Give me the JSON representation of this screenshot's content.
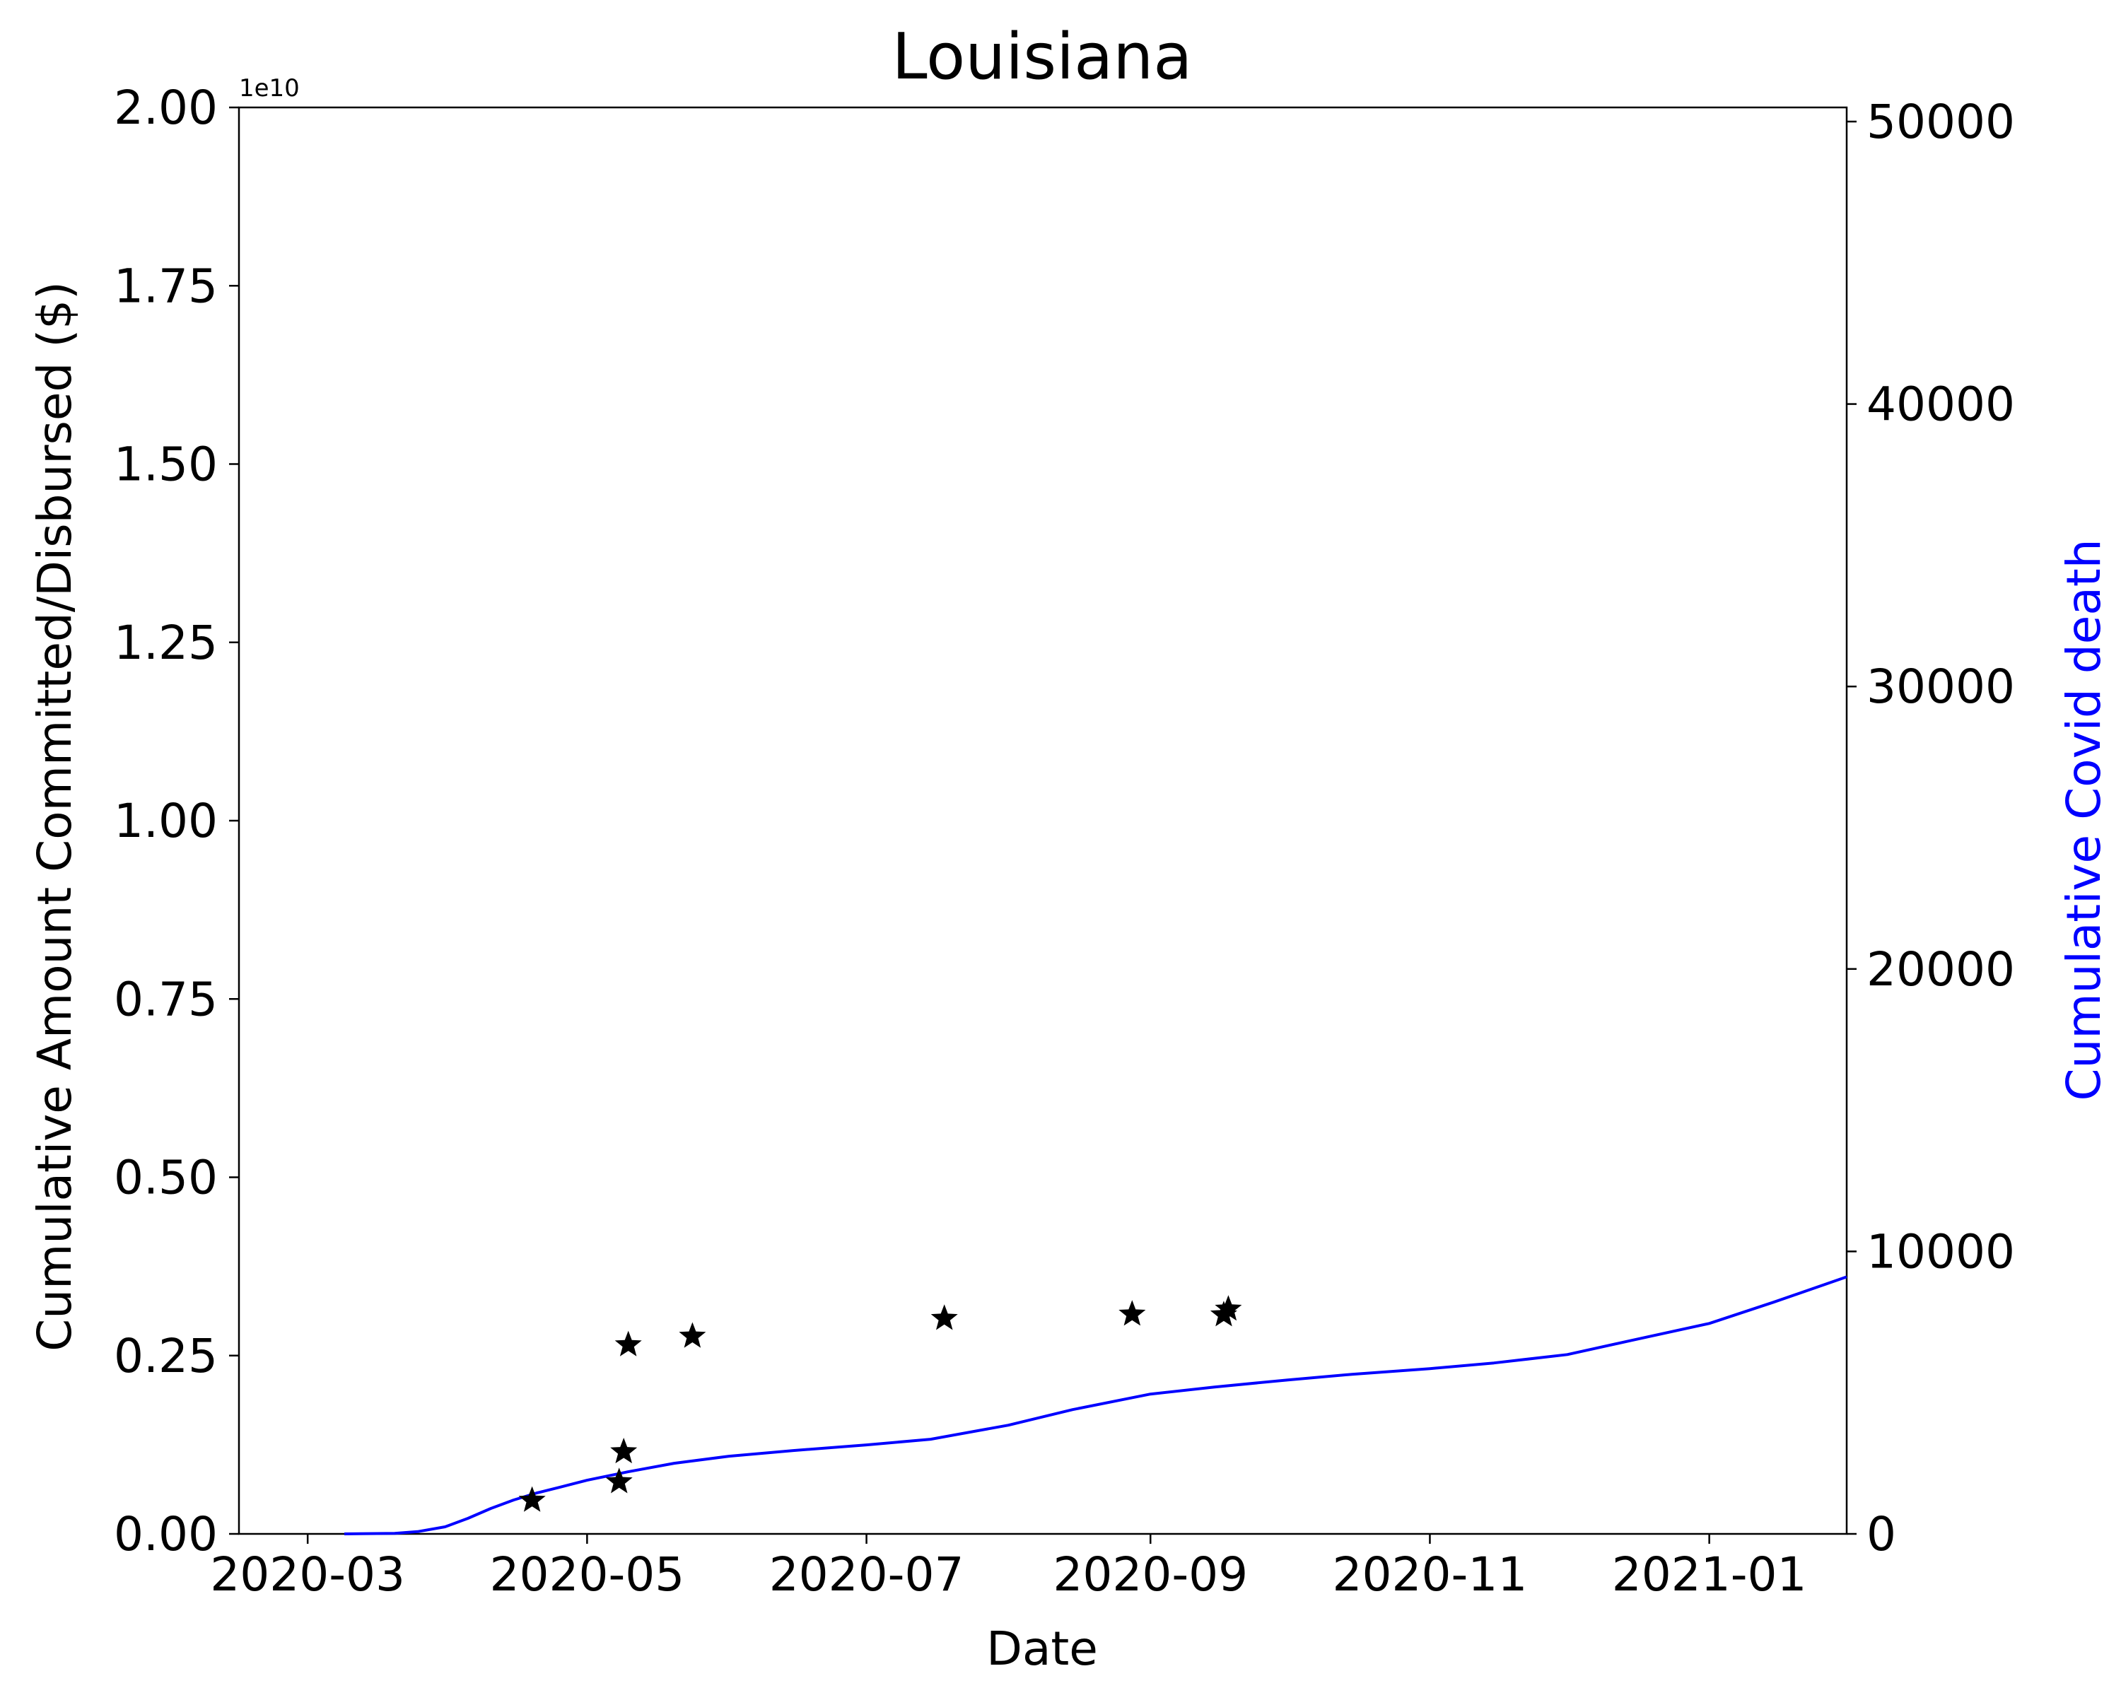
{
  "chart_data": {
    "type": "line",
    "title": "Louisiana",
    "xlabel": "Date",
    "ylabel_left": "Cumulative Amount Committed/Disbursed ($)",
    "ylabel_right": "Cumulative Covid death",
    "left_axis_offset_text": "1e10",
    "x_range": [
      "2020-02-15",
      "2021-01-31"
    ],
    "x_ticks": [
      "2020-03-01",
      "2020-05-01",
      "2020-07-01",
      "2020-09-01",
      "2020-11-01",
      "2021-01-01"
    ],
    "x_tick_labels": [
      "2020-03",
      "2020-05",
      "2020-07",
      "2020-09",
      "2020-11",
      "2021-01"
    ],
    "y_left_ylim": [
      0,
      2.0
    ],
    "y_left_ticks": [
      0,
      0.25,
      0.5,
      0.75,
      1.0,
      1.25,
      1.5,
      1.75,
      2.0
    ],
    "y_left_tick_labels": [
      "0.00",
      "0.25",
      "0.50",
      "0.75",
      "1.00",
      "1.25",
      "1.50",
      "1.75",
      "2.00"
    ],
    "y_right_ylim": [
      0,
      50500
    ],
    "y_right_ticks": [
      0,
      10000,
      20000,
      30000,
      40000,
      50000
    ],
    "y_right_tick_labels": [
      "0",
      "10000",
      "20000",
      "30000",
      "40000",
      "50000"
    ],
    "grid": false,
    "series": [
      {
        "type": "line",
        "axis": "right",
        "color": "#0000ff",
        "points": [
          [
            "2020-03-09",
            0
          ],
          [
            "2020-03-20",
            20
          ],
          [
            "2020-03-25",
            80
          ],
          [
            "2020-03-31",
            250
          ],
          [
            "2020-04-05",
            550
          ],
          [
            "2020-04-10",
            900
          ],
          [
            "2020-04-15",
            1200
          ],
          [
            "2020-04-20",
            1450
          ],
          [
            "2020-04-25",
            1650
          ],
          [
            "2020-05-01",
            1900
          ],
          [
            "2020-05-10",
            2200
          ],
          [
            "2020-05-20",
            2500
          ],
          [
            "2020-06-01",
            2750
          ],
          [
            "2020-06-15",
            2950
          ],
          [
            "2020-07-01",
            3150
          ],
          [
            "2020-07-15",
            3350
          ],
          [
            "2020-08-01",
            3850
          ],
          [
            "2020-08-15",
            4400
          ],
          [
            "2020-09-01",
            4950
          ],
          [
            "2020-09-15",
            5200
          ],
          [
            "2020-10-01",
            5450
          ],
          [
            "2020-10-15",
            5650
          ],
          [
            "2020-11-01",
            5850
          ],
          [
            "2020-11-15",
            6050
          ],
          [
            "2020-12-01",
            6350
          ],
          [
            "2020-12-15",
            6850
          ],
          [
            "2021-01-01",
            7450
          ],
          [
            "2021-01-15",
            8200
          ],
          [
            "2021-01-31",
            9100
          ]
        ]
      },
      {
        "type": "scatter",
        "axis": "left",
        "marker": "star",
        "color": "#000000",
        "points": [
          [
            "2020-04-19",
            0.047
          ],
          [
            "2020-05-08",
            0.073
          ],
          [
            "2020-05-09",
            0.115
          ],
          [
            "2020-05-10",
            0.265
          ],
          [
            "2020-05-24",
            0.277
          ],
          [
            "2020-07-18",
            0.302
          ],
          [
            "2020-08-28",
            0.308
          ],
          [
            "2020-09-17",
            0.307
          ],
          [
            "2020-09-18",
            0.315
          ]
        ]
      }
    ]
  }
}
